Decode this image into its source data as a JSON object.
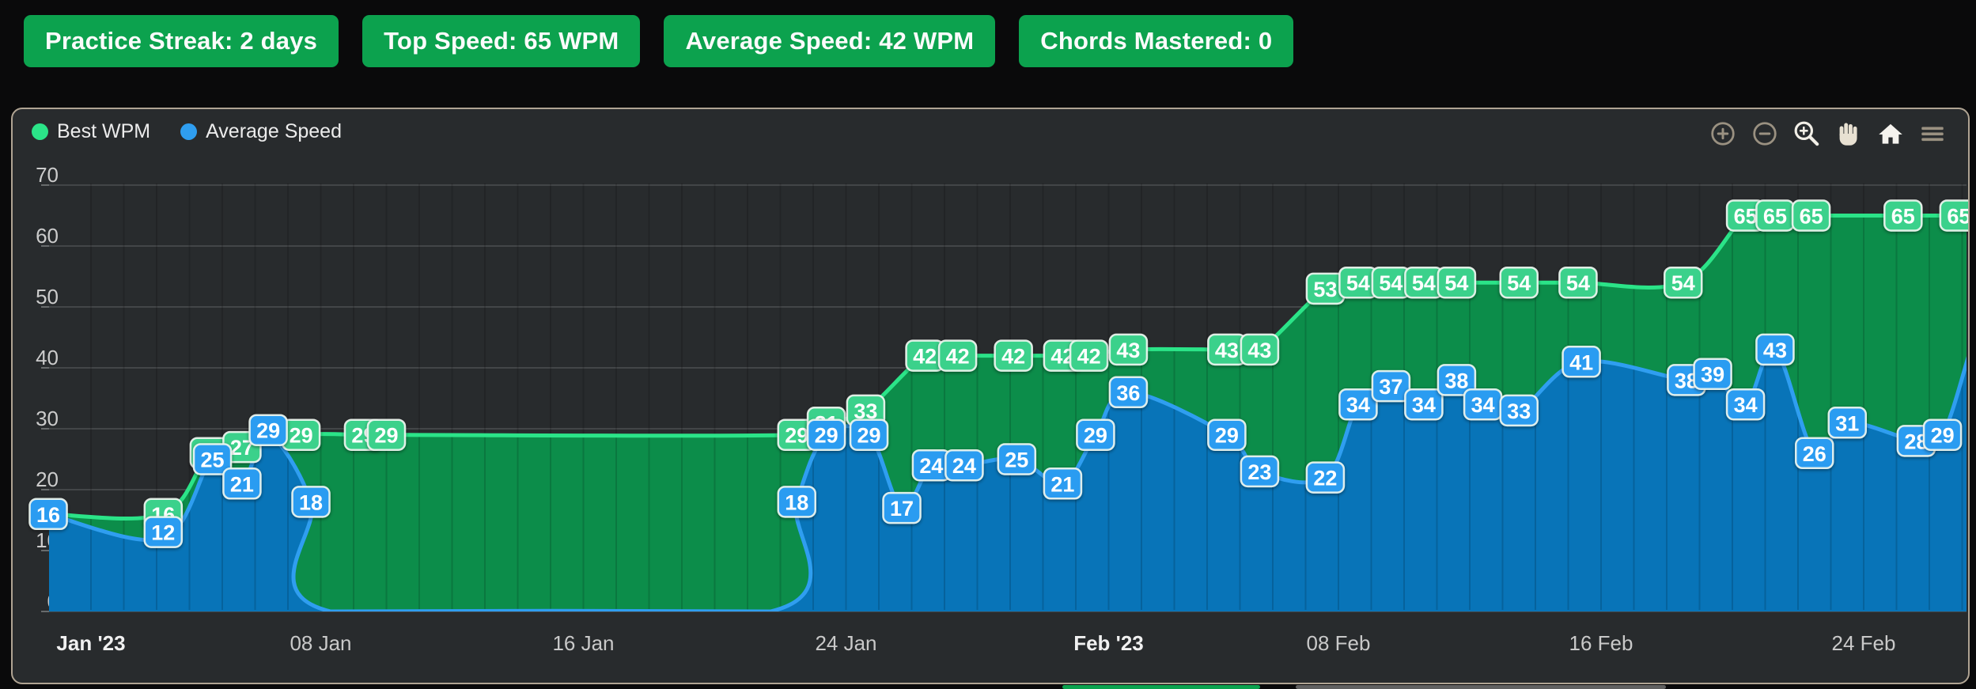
{
  "stats": {
    "chip_bg": "#0ca24e",
    "items": [
      {
        "label": "Practice Streak: 2 days"
      },
      {
        "label": "Top Speed: 65 WPM"
      },
      {
        "label": "Average Speed: 42 WPM"
      },
      {
        "label": "Chords Mastered: 0"
      }
    ]
  },
  "legend": [
    {
      "label": "Best WPM",
      "color": "#2be488"
    },
    {
      "label": "Average Speed",
      "color": "#2f9ef0"
    }
  ],
  "toolbar": {
    "icons": [
      "zoom-in-icon",
      "zoom-out-icon",
      "selection-zoom-icon",
      "pan-icon",
      "reset-home-icon",
      "menu-icon"
    ]
  },
  "bottom_fragments": [
    {
      "color": "#0ca24e"
    },
    {
      "color": "#606060"
    }
  ],
  "chart_data": {
    "type": "area",
    "title": "",
    "legend_position": "top-left",
    "grid": true,
    "x_axis": {
      "unit": "date",
      "note": "day 0 = Jan 1 2023; fractional days estimated from pixel positions",
      "tick_labels": [
        {
          "d": 0,
          "label": "Jan '23",
          "bold": true
        },
        {
          "d": 7,
          "label": "08 Jan",
          "bold": false
        },
        {
          "d": 15,
          "label": "16 Jan",
          "bold": false
        },
        {
          "d": 23,
          "label": "24 Jan",
          "bold": false
        },
        {
          "d": 31,
          "label": "Feb '23",
          "bold": true
        },
        {
          "d": 38,
          "label": "08 Feb",
          "bold": false
        },
        {
          "d": 46,
          "label": "16 Feb",
          "bold": false
        },
        {
          "d": 54,
          "label": "24 Feb",
          "bold": false
        }
      ]
    },
    "y_axis": {
      "min": 0,
      "max": 70,
      "ticks": [
        0,
        10,
        20,
        30,
        40,
        50,
        60,
        70
      ]
    },
    "series": [
      {
        "name": "Best WPM",
        "line_color": "#2be488",
        "fill_color": "#0c8d4a",
        "label_bg": "#3bd18b",
        "points": [
          [
            -1.3,
            16,
            0
          ],
          [
            2.2,
            16,
            1
          ],
          [
            3.6,
            26,
            1
          ],
          [
            4.6,
            27,
            1
          ],
          [
            6.4,
            29,
            1
          ],
          [
            8.3,
            29,
            1
          ],
          [
            9.0,
            29,
            1
          ],
          [
            21.5,
            29,
            1
          ],
          [
            22.4,
            31,
            1
          ],
          [
            23.6,
            33,
            1
          ],
          [
            25.4,
            42,
            1
          ],
          [
            26.4,
            42,
            1
          ],
          [
            28.1,
            42,
            1
          ],
          [
            29.6,
            42,
            1
          ],
          [
            30.4,
            42,
            1
          ],
          [
            31.6,
            43,
            1
          ],
          [
            34.6,
            43,
            1
          ],
          [
            35.6,
            43,
            1
          ],
          [
            37.6,
            53,
            1
          ],
          [
            38.6,
            54,
            1
          ],
          [
            39.6,
            54,
            1
          ],
          [
            40.6,
            54,
            1
          ],
          [
            41.6,
            54,
            1
          ],
          [
            42.4,
            54,
            0
          ],
          [
            43.5,
            54,
            1
          ],
          [
            45.3,
            54,
            1
          ],
          [
            48.5,
            54,
            1
          ],
          [
            50.4,
            65,
            1
          ],
          [
            51.3,
            65,
            1
          ],
          [
            52.4,
            65,
            1
          ],
          [
            53.5,
            65,
            0
          ],
          [
            55.2,
            65,
            1
          ],
          [
            56.9,
            65,
            1
          ],
          [
            57.3,
            65,
            0
          ]
        ]
      },
      {
        "name": "Average Speed",
        "line_color": "#2f9ef0",
        "fill_color": "#0874b8",
        "label_bg": "#2b9cf1",
        "points": [
          [
            -1.3,
            16,
            1
          ],
          [
            2.2,
            12,
            1,
            -8
          ],
          [
            3.7,
            25,
            1
          ],
          [
            4.6,
            21,
            1
          ],
          [
            5.4,
            29,
            1,
            -6
          ],
          [
            6.7,
            18,
            1
          ],
          [
            7.3,
            0,
            0
          ],
          [
            20.7,
            0,
            0
          ],
          [
            21.5,
            18,
            1
          ],
          [
            22.4,
            29,
            1
          ],
          [
            23.7,
            29,
            1
          ],
          [
            24.7,
            17,
            1
          ],
          [
            25.6,
            24,
            1
          ],
          [
            26.6,
            24,
            1
          ],
          [
            28.2,
            25,
            1
          ],
          [
            29.6,
            21,
            1
          ],
          [
            30.6,
            29,
            1
          ],
          [
            31.6,
            36,
            1
          ],
          [
            34.6,
            29,
            1
          ],
          [
            35.6,
            23,
            1
          ],
          [
            37.6,
            22,
            1
          ],
          [
            38.6,
            34,
            1
          ],
          [
            39.6,
            37,
            1
          ],
          [
            40.6,
            34,
            1
          ],
          [
            41.6,
            38,
            1
          ],
          [
            42.4,
            34,
            1
          ],
          [
            43.5,
            33,
            1
          ],
          [
            45.4,
            41,
            1
          ],
          [
            48.6,
            38,
            1
          ],
          [
            49.4,
            39,
            1
          ],
          [
            50.4,
            34,
            1
          ],
          [
            51.3,
            43,
            1
          ],
          [
            52.5,
            26,
            1
          ],
          [
            53.5,
            31,
            1
          ],
          [
            55.6,
            28,
            1
          ],
          [
            56.4,
            29,
            1
          ],
          [
            57.2,
            42,
            0
          ]
        ]
      }
    ]
  }
}
